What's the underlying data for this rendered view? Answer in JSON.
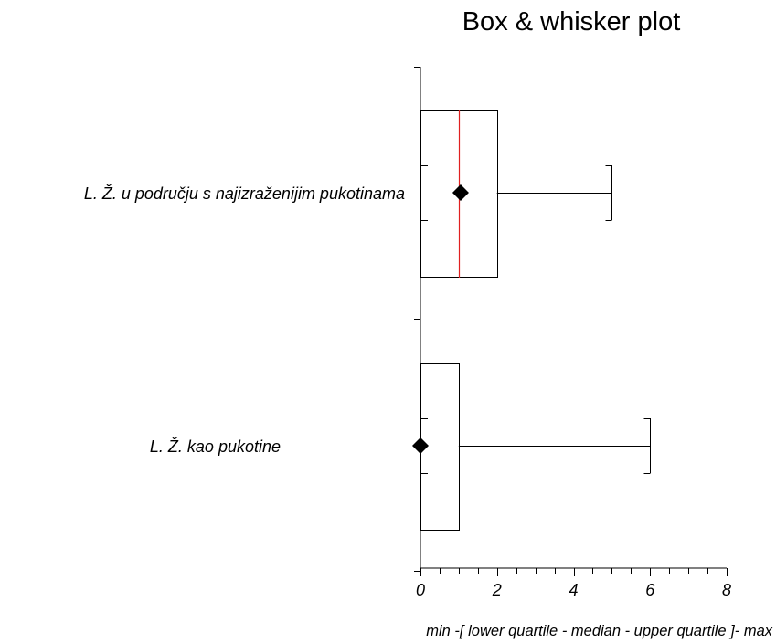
{
  "chart_data": {
    "type": "boxplot",
    "title": "Box & whisker plot",
    "xlabel": "min -[ lower quartile - median - upper quartile ]- max",
    "xlim": [
      0,
      8
    ],
    "xticks": [
      "0",
      "2",
      "4",
      "6",
      "8"
    ],
    "x_minor_step": 0.5,
    "categories": [
      "L. Ž. u području s najizraženijim pukotinama",
      "L. Ž. kao pukotine"
    ],
    "boxes": [
      {
        "category": "L. Ž. u području s najizraženijim pukotinama",
        "min": 0,
        "q1": 0,
        "median": 1,
        "q3": 2,
        "max": 5,
        "mean": 1.05
      },
      {
        "category": "L. Ž. kao pukotine",
        "min": 0,
        "q1": 0,
        "median": 0,
        "q3": 1,
        "max": 6,
        "mean": 0
      }
    ],
    "colors": {
      "median_line": "#e02020",
      "box_stroke": "#000000",
      "mean_marker": "#000000"
    },
    "mean_marker": "diamond",
    "grid": false,
    "legend": "none"
  }
}
